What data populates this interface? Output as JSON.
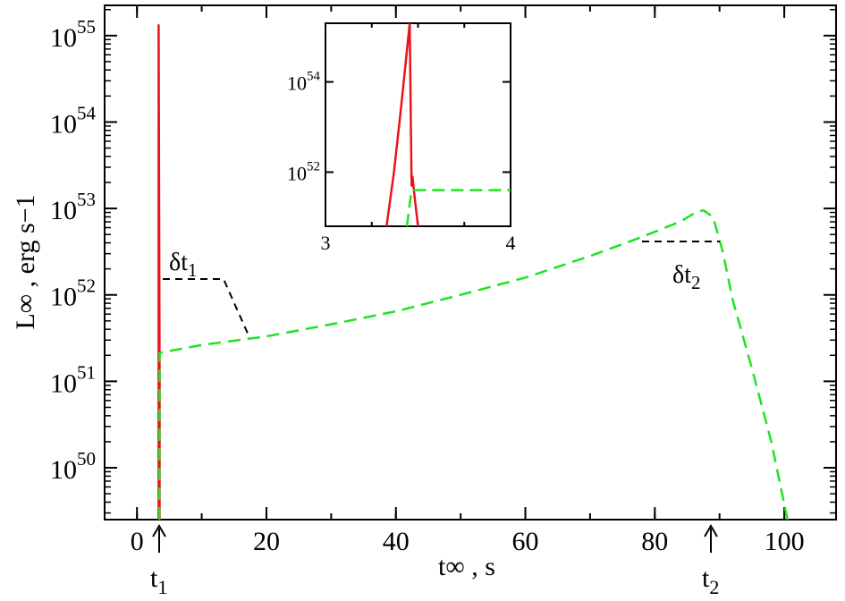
{
  "chart_data": [
    {
      "type": "line",
      "title": "",
      "xlabel": "t∞ , s",
      "ylabel": "L∞ , erg s−1",
      "xlim": [
        -5,
        108
      ],
      "ylim_log10": [
        49.4,
        55.35
      ],
      "yscale": "log",
      "grid": false,
      "xticks": [
        "0",
        "20",
        "40",
        "60",
        "80",
        "100"
      ],
      "yticks": [
        {
          "base": "10",
          "exp": "50"
        },
        {
          "base": "10",
          "exp": "51"
        },
        {
          "base": "10",
          "exp": "52"
        },
        {
          "base": "10",
          "exp": "53"
        },
        {
          "base": "10",
          "exp": "54"
        },
        {
          "base": "10",
          "exp": "55"
        }
      ],
      "series": [
        {
          "color": "#e8131b",
          "style": "solid",
          "x": [
            3.35,
            3.35,
            3.35,
            3.5,
            3.5
          ],
          "log10_y": [
            49.4,
            53.0,
            55.12,
            51.0,
            49.4
          ]
        },
        {
          "color": "#1ee41e",
          "style": "dashed",
          "x": [
            3.45,
            3.5,
            10,
            20,
            30,
            40,
            50,
            60,
            70,
            78,
            84,
            86,
            87.5,
            89,
            90.5,
            92,
            95,
            98,
            100.5
          ],
          "log10_y": [
            49.4,
            51.33,
            51.42,
            51.52,
            51.66,
            51.81,
            52.0,
            52.2,
            52.45,
            52.67,
            52.85,
            52.94,
            52.98,
            52.9,
            52.5,
            51.95,
            51.15,
            50.3,
            49.4
          ]
        }
      ],
      "annotations": [
        {
          "text_main": "δt",
          "text_sub": "1"
        },
        {
          "text_main": "δt",
          "text_sub": "2"
        },
        {
          "text_main": "t",
          "text_sub": "1",
          "at_x": 3.4
        },
        {
          "text_main": "t",
          "text_sub": "2",
          "at_x": 88.5
        }
      ]
    },
    {
      "type": "line",
      "title": "",
      "xlim": [
        3,
        4
      ],
      "ylim_log10": [
        50.8,
        55.3
      ],
      "yscale": "log",
      "xticks": [
        "3",
        "4"
      ],
      "yticks": [
        {
          "base": "10",
          "exp": "52"
        },
        {
          "base": "10",
          "exp": "54"
        }
      ],
      "series": [
        {
          "color": "#e8131b",
          "style": "solid",
          "x": [
            3.33,
            3.37,
            3.41,
            3.44,
            3.455,
            3.465,
            3.47,
            3.48,
            3.5
          ],
          "log10_y": [
            50.8,
            52.0,
            53.5,
            54.7,
            55.3,
            51.7,
            51.9,
            51.5,
            50.8
          ]
        },
        {
          "color": "#1ee41e",
          "style": "dashed",
          "x": [
            3.44,
            3.46,
            3.47,
            3.6,
            3.8,
            4.0
          ],
          "log10_y": [
            50.8,
            51.45,
            51.6,
            51.6,
            51.6,
            51.6
          ]
        }
      ]
    }
  ]
}
